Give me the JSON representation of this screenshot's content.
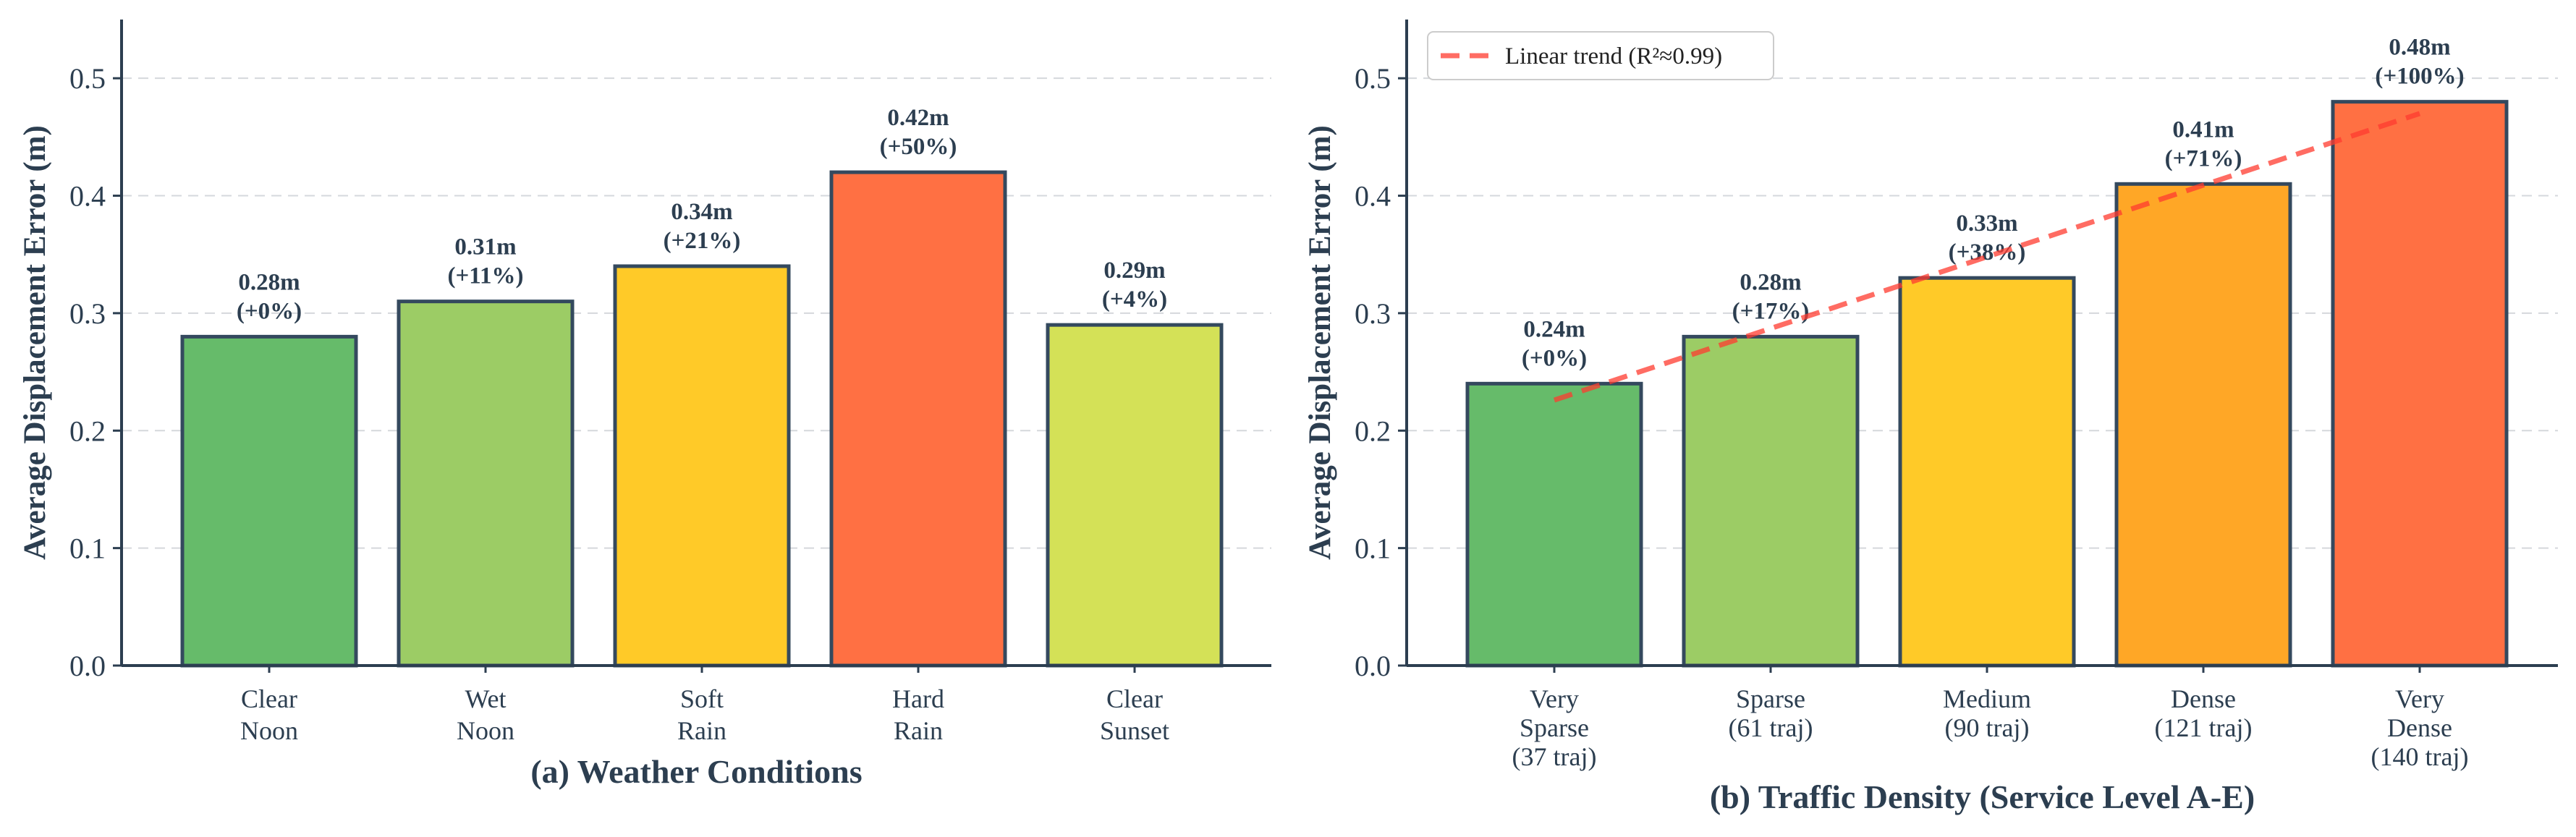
{
  "chart_data": [
    {
      "type": "bar",
      "title": "",
      "xlabel": "(a) Weather Conditions",
      "ylabel": "Average Displacement Error (m)",
      "ylim": [
        0,
        0.55
      ],
      "yticks": [
        0.0,
        0.1,
        0.2,
        0.3,
        0.4,
        0.5
      ],
      "ytick_labels": [
        "0.0",
        "0.1",
        "0.2",
        "0.3",
        "0.4",
        "0.5"
      ],
      "grid": true,
      "categories": [
        [
          "Clear",
          "Noon"
        ],
        [
          "Wet",
          "Noon"
        ],
        [
          "Soft",
          "Rain"
        ],
        [
          "Hard",
          "Rain"
        ],
        [
          "Clear",
          "Sunset"
        ]
      ],
      "values": [
        0.28,
        0.31,
        0.34,
        0.42,
        0.29
      ],
      "bar_labels": [
        [
          "0.28m",
          "(+0%)"
        ],
        [
          "0.31m",
          "(+11%)"
        ],
        [
          "0.34m",
          "(+21%)"
        ],
        [
          "0.42m",
          "(+50%)"
        ],
        [
          "0.29m",
          "(+4%)"
        ]
      ],
      "colors": [
        "#66bb6a",
        "#9ccc65",
        "#ffca28",
        "#ff7043",
        "#d4e157"
      ]
    },
    {
      "type": "bar",
      "title": "",
      "xlabel": "(b) Traffic Density (Service Level A-E)",
      "ylabel": "Average Displacement Error (m)",
      "ylim": [
        0,
        0.55
      ],
      "yticks": [
        0.0,
        0.1,
        0.2,
        0.3,
        0.4,
        0.5
      ],
      "ytick_labels": [
        "0.0",
        "0.1",
        "0.2",
        "0.3",
        "0.4",
        "0.5"
      ],
      "grid": true,
      "categories": [
        [
          "Very",
          "Sparse",
          "(37 traj)"
        ],
        [
          "Sparse",
          "(61 traj)"
        ],
        [
          "Medium",
          "(90 traj)"
        ],
        [
          "Dense",
          "(121 traj)"
        ],
        [
          "Very",
          "Dense",
          "(140 traj)"
        ]
      ],
      "values": [
        0.24,
        0.28,
        0.33,
        0.41,
        0.48
      ],
      "bar_labels": [
        [
          "0.24m",
          "(+0%)"
        ],
        [
          "0.28m",
          "(+17%)"
        ],
        [
          "0.33m",
          "(+38%)"
        ],
        [
          "0.41m",
          "(+71%)"
        ],
        [
          "0.48m",
          "(+100%)"
        ]
      ],
      "colors": [
        "#66bb6a",
        "#9ccc65",
        "#ffca28",
        "#ffa726",
        "#ff7043"
      ],
      "trend": {
        "label": "Linear trend (R²≈0.99)",
        "x_start": 0,
        "y_start": 0.226,
        "x_end": 4,
        "y_end": 0.47,
        "color": "#ff3b30"
      },
      "legend_location": "top-left"
    }
  ]
}
